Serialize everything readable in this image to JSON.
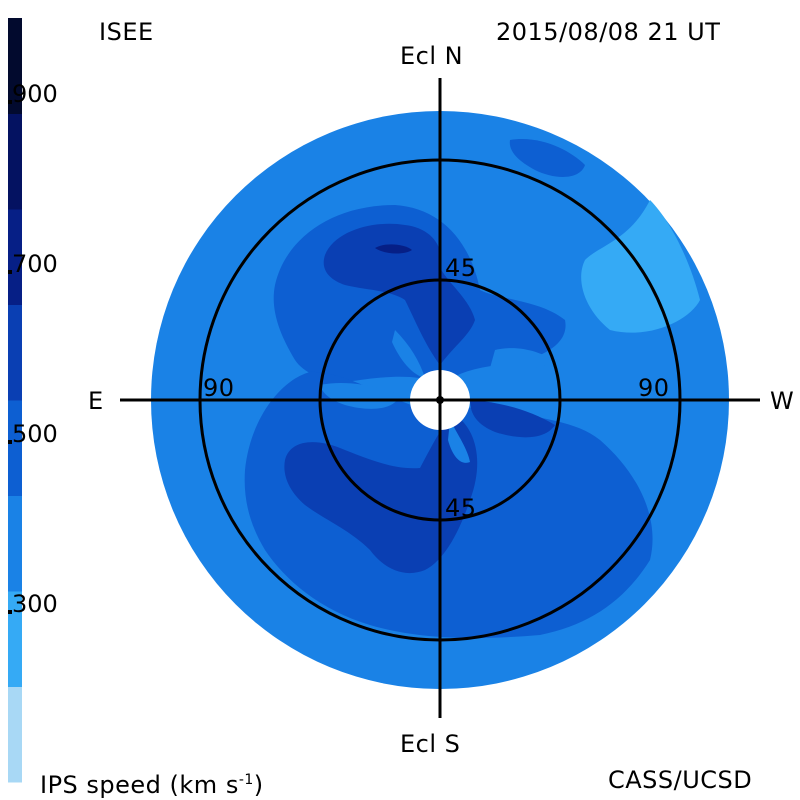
{
  "header": {
    "agency": "ISEE",
    "datetime": "2015/08/08 21 UT"
  },
  "footer": {
    "quantity_label": "IPS speed (km s",
    "quantity_exponent": "-1",
    "quantity_close": ")",
    "credit": "CASS/UCSD"
  },
  "directions": {
    "north": "Ecl N",
    "south": "Ecl S",
    "east": "E",
    "west": "W"
  },
  "elongation_rings": {
    "inner_label": "45",
    "outer_label": "90",
    "inner_deg": 45,
    "outer_deg": 90
  },
  "colorbar": {
    "tick_labels": [
      "900",
      "700",
      "500",
      "300"
    ],
    "tick_values": [
      900,
      700,
      500,
      300
    ],
    "levels": [
      {
        "from": 200,
        "to": 300,
        "color": "#a8d8f5"
      },
      {
        "from": 300,
        "to": 400,
        "color": "#35aaf5"
      },
      {
        "from": 400,
        "to": 500,
        "color": "#1a82e6"
      },
      {
        "from": 500,
        "to": 600,
        "color": "#0d5fd2"
      },
      {
        "from": 600,
        "to": 700,
        "color": "#0a3fb3"
      },
      {
        "from": 700,
        "to": 800,
        "color": "#061f86"
      },
      {
        "from": 800,
        "to": 900,
        "color": "#041261"
      },
      {
        "from": 900,
        "to": 1000,
        "color": "#020a2e"
      }
    ]
  },
  "colors": {
    "background_speed": "#1a82e6",
    "fast_wind": "#0d5fd2",
    "faster_wind": "#0a3fb3",
    "fastest_wind": "#061f86",
    "slow_wind": "#35aaf5",
    "sun_occulter": "#ffffff",
    "grid": "#000000"
  }
}
